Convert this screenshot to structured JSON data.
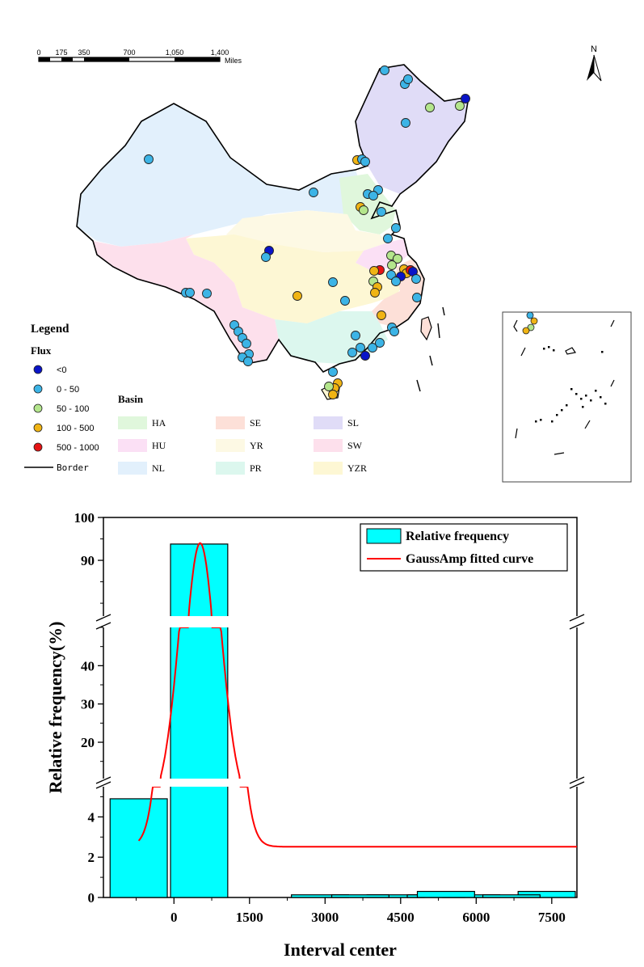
{
  "map": {
    "scalebar": {
      "ticks": [
        "0",
        "175",
        "350",
        "700",
        "1,050",
        "1,400"
      ],
      "unit": "Miles"
    },
    "north_label": "N",
    "legend": {
      "title": "Legend",
      "flux_title": "Flux",
      "flux_classes": [
        {
          "label": "<0",
          "color": "#0a14c8"
        },
        {
          "label": "0 - 50",
          "color": "#3cb4e6"
        },
        {
          "label": "50 - 100",
          "color": "#b4e68c"
        },
        {
          "label": "100 - 500",
          "color": "#f0b414"
        },
        {
          "label": "500 - 1000",
          "color": "#e61414"
        }
      ],
      "border_label": "Border",
      "basin_title": "Basin",
      "basins": [
        {
          "label": "HA",
          "color": "#e0f7dc"
        },
        {
          "label": "SE",
          "color": "#fde0d8"
        },
        {
          "label": "SL",
          "color": "#e0dcf7"
        },
        {
          "label": "HU",
          "color": "#fbe0f5"
        },
        {
          "label": "YR",
          "color": "#fdf9e4"
        },
        {
          "label": "SW",
          "color": "#fde0ec"
        },
        {
          "label": "NL",
          "color": "#e2f0fc"
        },
        {
          "label": "PR",
          "color": "#dcf7ee"
        },
        {
          "label": "YZR",
          "color": "#fdf7d4"
        }
      ]
    }
  },
  "chart_data": {
    "type": "bar",
    "title": "",
    "xlabel": "Interval center",
    "ylabel": "Relative frequency(%)",
    "x_ticks": [
      0,
      1500,
      3000,
      4500,
      6000,
      7500
    ],
    "x_range": [
      -1400,
      8000
    ],
    "y_break_segments": [
      {
        "range": [
          0,
          5.5
        ],
        "ticks": [
          0,
          2,
          4
        ]
      },
      {
        "range": [
          10.5,
          50
        ],
        "ticks": [
          20,
          30,
          40
        ]
      },
      {
        "range": [
          77,
          100
        ],
        "ticks": [
          90,
          100
        ]
      }
    ],
    "bar_width": 1200,
    "series": [
      {
        "name": "Relative frequency",
        "color": "#00ffff",
        "x": [
          -700,
          500,
          2900,
          4400,
          5900,
          7400
        ],
        "values": [
          4.9,
          93.8,
          0.13,
          0.13,
          0.13,
          0.3
        ]
      }
    ],
    "extra_bars": [
      {
        "x": 3700,
        "value": 0.13
      },
      {
        "x": 5200,
        "value": 0.13
      },
      {
        "x": 5400,
        "value": 0.3
      },
      {
        "x": 6700,
        "value": 0.13
      }
    ],
    "fit": {
      "name": "GaussAmp fitted curve",
      "type": "gaussamp",
      "color": "#ff0000",
      "y0": 2.52,
      "xc": 520,
      "w": 360,
      "A": 91.5,
      "x_from": -700,
      "x_to": 8000
    },
    "legend_position": "top-right"
  }
}
